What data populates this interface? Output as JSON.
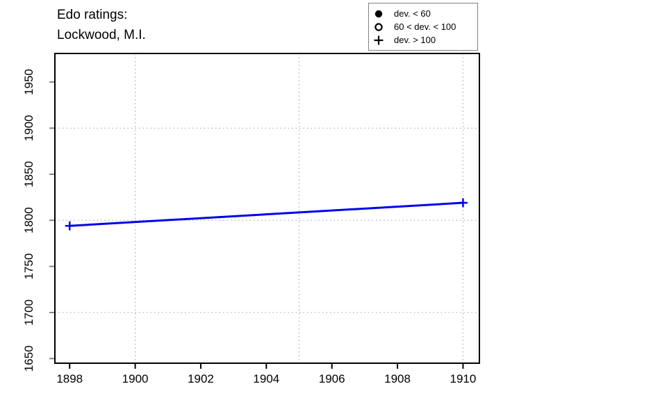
{
  "title": {
    "text": "Edo ratings:\nLockwood, M.I."
  },
  "legend": {
    "items": [
      {
        "symbol": "filled-circle",
        "label": "dev. < 60"
      },
      {
        "symbol": "open-circle",
        "label": "60 < dev. < 100"
      },
      {
        "symbol": "plus",
        "label": "dev. > 100"
      }
    ]
  },
  "chart_data": {
    "type": "line",
    "title": "Edo ratings: Lockwood, M.I.",
    "xlabel": "",
    "ylabel": "",
    "xlim": [
      1897.55,
      1910.5
    ],
    "ylim": [
      1645,
      1981
    ],
    "x_ticks": [
      1898,
      1900,
      1902,
      1904,
      1906,
      1908,
      1910
    ],
    "y_ticks": [
      1650,
      1700,
      1750,
      1800,
      1850,
      1900,
      1950
    ],
    "grid_x": [
      1900,
      1905,
      1910
    ],
    "grid_y": [
      1700,
      1800,
      1900
    ],
    "grid": true,
    "legend_position": "top-right",
    "series": [
      {
        "name": "Edo rating",
        "color": "#0000ee",
        "line_width": 3,
        "points": [
          {
            "x": 1898,
            "y": 1794,
            "marker": "plus"
          },
          {
            "x": 1910,
            "y": 1819,
            "marker": "plus"
          }
        ]
      }
    ]
  },
  "colors": {
    "line": "#0000ee",
    "grid": "#9c9c9c",
    "y_tick": "#848484",
    "x_tick": "#000000",
    "box": "#000000",
    "legend_border": "#808080"
  }
}
